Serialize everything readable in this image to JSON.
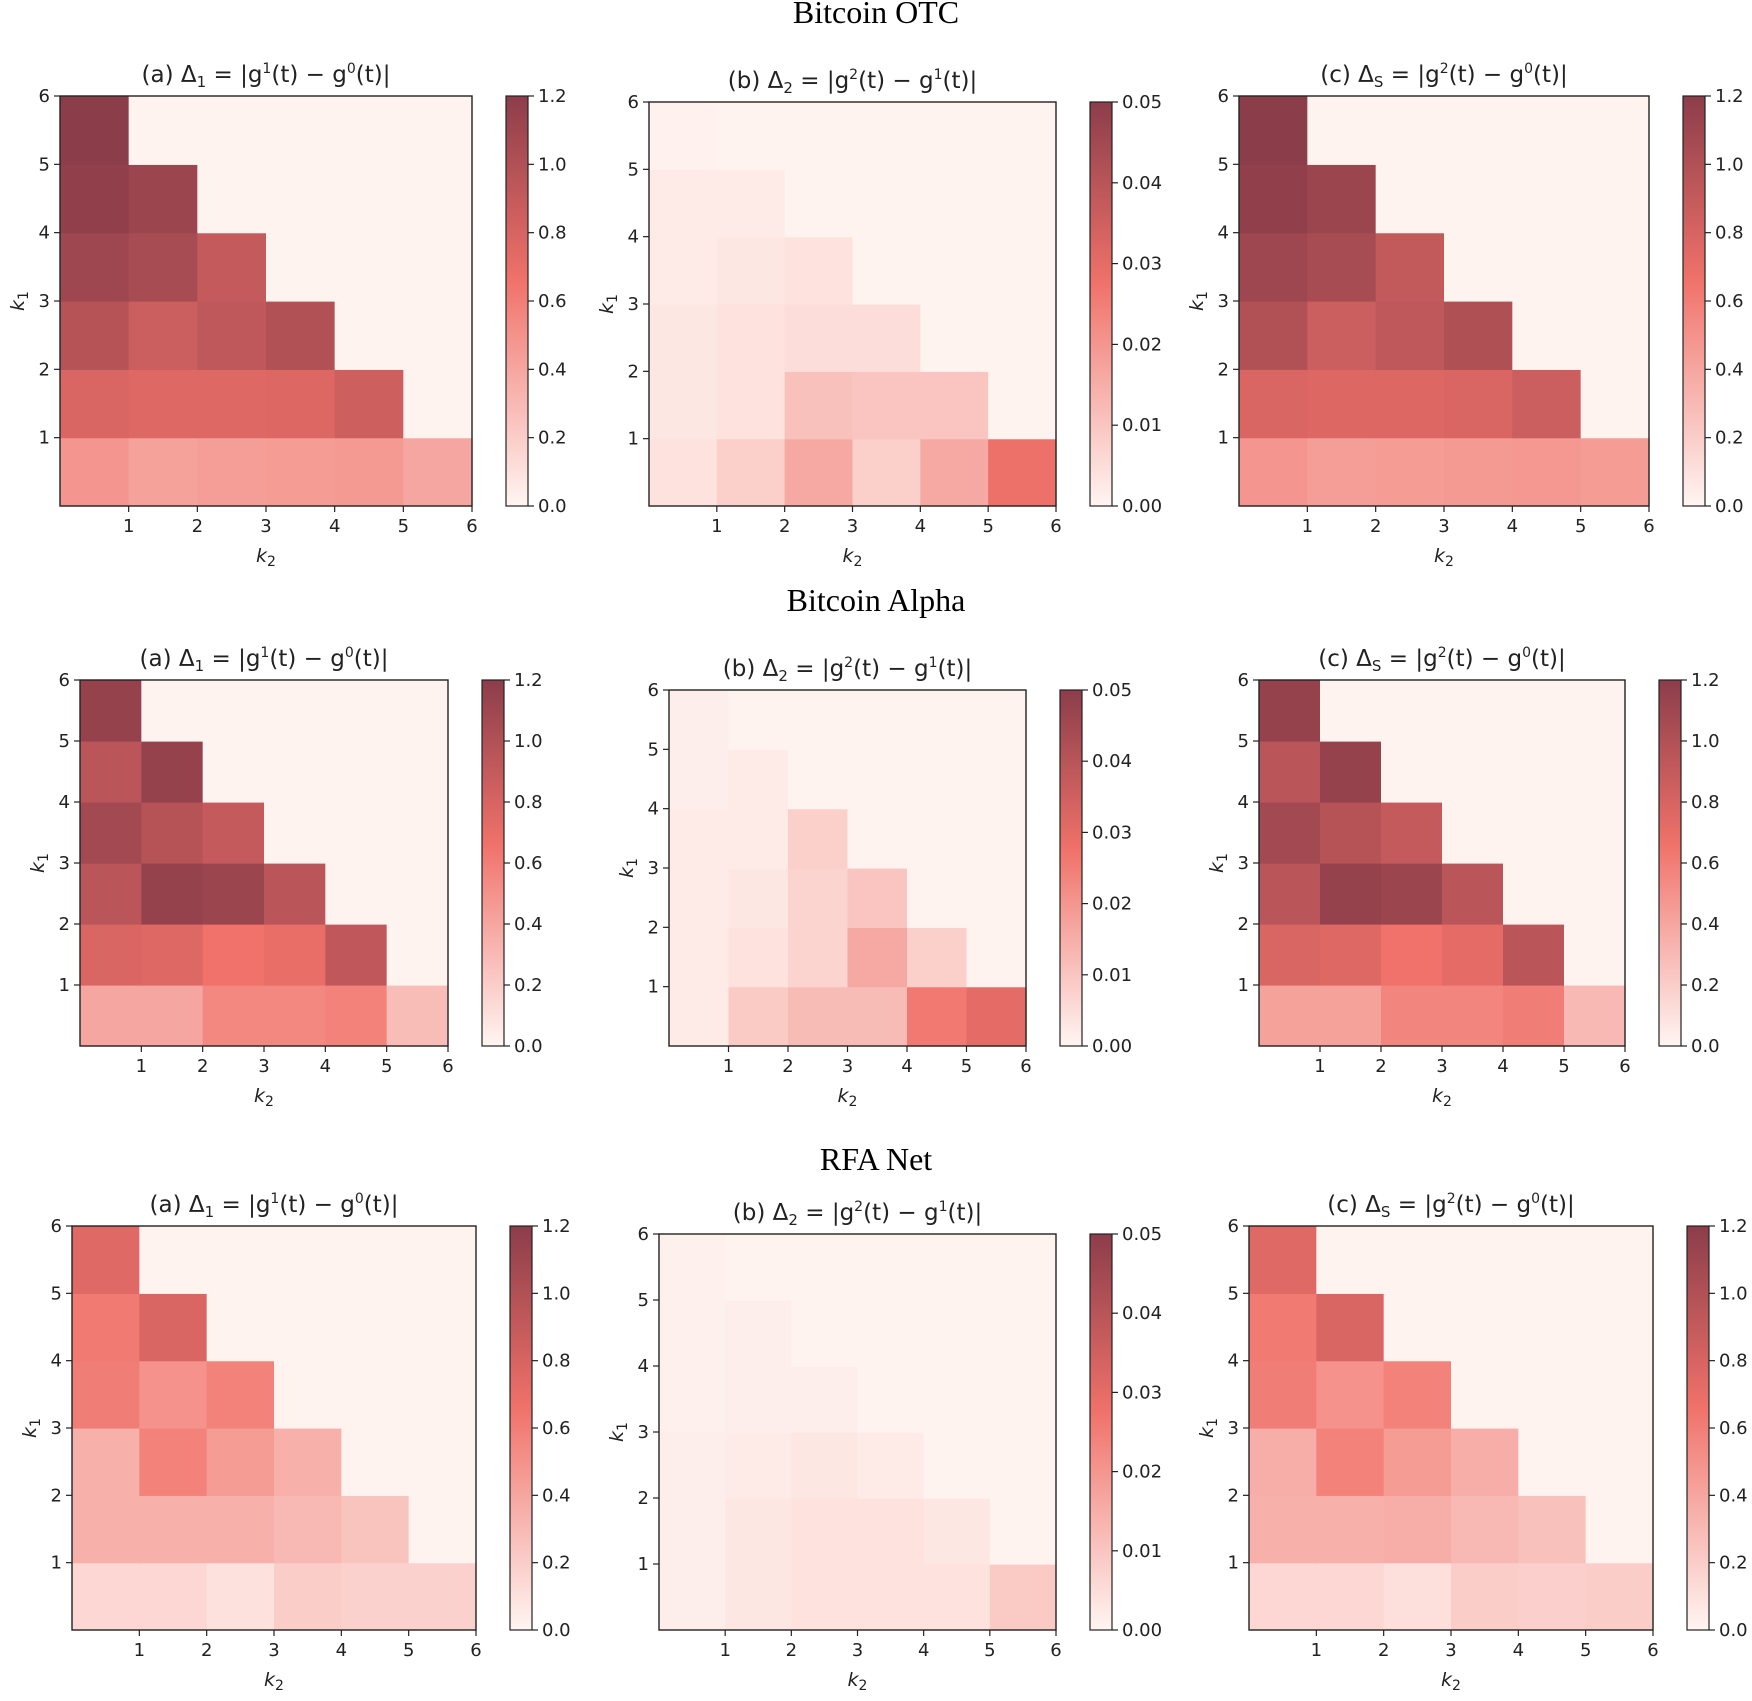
{
  "figure": {
    "groups": [
      {
        "title": "Bitcoin OTC"
      },
      {
        "title": "Bitcoin Alpha"
      },
      {
        "title": "RFA Net"
      }
    ]
  },
  "colors": {
    "low": "#fff5f2",
    "mid": "#f0726a",
    "high": "#8c3d4a",
    "axis": "#222222"
  },
  "chart_data": [
    {
      "type": "heatmap",
      "group": "Bitcoin OTC",
      "title": "(a) Δ1 = |g1(t) − g0(t)|",
      "title_parts": {
        "prefix": "(a) Δ",
        "sub1": "1",
        "mid1": " = |g",
        "sup1": "1",
        "mid2": "(t) − g",
        "sup2": "0",
        "end": "(t)|"
      },
      "xlabel": "k2",
      "ylabel": "k1",
      "xticks": [
        "1",
        "2",
        "3",
        "4",
        "5",
        "6"
      ],
      "yticks": [
        "1",
        "2",
        "3",
        "4",
        "5",
        "6"
      ],
      "xlim": [
        0,
        6
      ],
      "ylim": [
        0,
        6
      ],
      "colorbar": {
        "min": 0,
        "max": 1.2,
        "ticks": [
          "0.0",
          "0.2",
          "0.4",
          "0.6",
          "0.8",
          "1.0",
          "1.2"
        ]
      },
      "values": [
        [
          0.48,
          0.42,
          0.44,
          0.45,
          0.46,
          0.4
        ],
        [
          0.78,
          0.76,
          0.76,
          0.77,
          0.85,
          0.01
        ],
        [
          0.98,
          0.86,
          0.93,
          1.0,
          0.01,
          0.01
        ],
        [
          1.1,
          1.05,
          0.9,
          0.01,
          0.01,
          0.01
        ],
        [
          1.18,
          1.12,
          0.01,
          0.01,
          0.01,
          0.01
        ],
        [
          1.2,
          0.01,
          0.01,
          0.01,
          0.01,
          0.01
        ]
      ]
    },
    {
      "type": "heatmap",
      "group": "Bitcoin OTC",
      "title": "(b) Δ2 = |g2(t) − g1(t)|",
      "title_parts": {
        "prefix": "(b) Δ",
        "sub1": "2",
        "mid1": " = |g",
        "sup1": "2",
        "mid2": "(t) − g",
        "sup2": "1",
        "end": "(t)|"
      },
      "xlabel": "k2",
      "ylabel": "k1",
      "xticks": [
        "1",
        "2",
        "3",
        "4",
        "5",
        "6"
      ],
      "yticks": [
        "1",
        "2",
        "3",
        "4",
        "5",
        "6"
      ],
      "xlim": [
        0,
        6
      ],
      "ylim": [
        0,
        6
      ],
      "colorbar": {
        "min": 0,
        "max": 0.05,
        "ticks": [
          "0.00",
          "0.01",
          "0.02",
          "0.03",
          "0.04",
          "0.05"
        ]
      },
      "values": [
        [
          0.004,
          0.008,
          0.016,
          0.008,
          0.016,
          0.028
        ],
        [
          0.003,
          0.004,
          0.011,
          0.01,
          0.01,
          0.0004
        ],
        [
          0.003,
          0.004,
          0.005,
          0.005,
          0.0004,
          0.0004
        ],
        [
          0.002,
          0.003,
          0.004,
          0.0004,
          0.0004,
          0.0004
        ],
        [
          0.002,
          0.002,
          0.0004,
          0.0004,
          0.0004,
          0.0004
        ],
        [
          0.0008,
          0.0004,
          0.0004,
          0.0004,
          0.0004,
          0.0004
        ]
      ]
    },
    {
      "type": "heatmap",
      "group": "Bitcoin OTC",
      "title": "(c) ΔS = |g2(t) − g0(t)|",
      "title_parts": {
        "prefix": "(c) Δ",
        "sub1": "S",
        "mid1": " = |g",
        "sup1": "2",
        "mid2": "(t) − g",
        "sup2": "0",
        "end": "(t)|"
      },
      "xlabel": "k2",
      "ylabel": "k1",
      "xticks": [
        "1",
        "2",
        "3",
        "4",
        "5",
        "6"
      ],
      "yticks": [
        "1",
        "2",
        "3",
        "4",
        "5",
        "6"
      ],
      "xlim": [
        0,
        6
      ],
      "ylim": [
        0,
        6
      ],
      "colorbar": {
        "min": 0,
        "max": 1.2,
        "ticks": [
          "0.0",
          "0.2",
          "0.4",
          "0.6",
          "0.8",
          "1.0",
          "1.2"
        ]
      },
      "values": [
        [
          0.48,
          0.44,
          0.45,
          0.46,
          0.47,
          0.45
        ],
        [
          0.78,
          0.77,
          0.77,
          0.78,
          0.86,
          0.01
        ],
        [
          1.0,
          0.86,
          0.93,
          1.01,
          0.01,
          0.01
        ],
        [
          1.1,
          1.05,
          0.91,
          0.01,
          0.01,
          0.01
        ],
        [
          1.18,
          1.12,
          0.01,
          0.01,
          0.01,
          0.01
        ],
        [
          1.2,
          0.01,
          0.01,
          0.01,
          0.01,
          0.01
        ]
      ]
    },
    {
      "type": "heatmap",
      "group": "Bitcoin Alpha",
      "title": "(a) Δ1 = |g1(t) − g0(t)|",
      "title_parts": {
        "prefix": "(a) Δ",
        "sub1": "1",
        "mid1": " = |g",
        "sup1": "1",
        "mid2": "(t) − g",
        "sup2": "0",
        "end": "(t)|"
      },
      "xlabel": "k2",
      "ylabel": "k1",
      "xticks": [
        "1",
        "2",
        "3",
        "4",
        "5",
        "6"
      ],
      "yticks": [
        "1",
        "2",
        "3",
        "4",
        "5",
        "6"
      ],
      "xlim": [
        0,
        6
      ],
      "ylim": [
        0,
        6
      ],
      "colorbar": {
        "min": 0,
        "max": 1.2,
        "ticks": [
          "0.0",
          "0.2",
          "0.4",
          "0.6",
          "0.8",
          "1.0",
          "1.2"
        ]
      },
      "values": [
        [
          0.4,
          0.4,
          0.55,
          0.55,
          0.58,
          0.28
        ],
        [
          0.78,
          0.76,
          0.66,
          0.7,
          0.92,
          0.01
        ],
        [
          0.95,
          1.15,
          1.12,
          0.95,
          0.01,
          0.01
        ],
        [
          1.08,
          0.98,
          0.9,
          0.01,
          0.01,
          0.01
        ],
        [
          0.95,
          1.15,
          0.01,
          0.01,
          0.01,
          0.01
        ],
        [
          1.15,
          0.01,
          0.01,
          0.01,
          0.01,
          0.01
        ]
      ]
    },
    {
      "type": "heatmap",
      "group": "Bitcoin Alpha",
      "title": "(b) Δ2 = |g2(t) − g1(t)|",
      "title_parts": {
        "prefix": "(b) Δ",
        "sub1": "2",
        "mid1": " = |g",
        "sup1": "2",
        "mid2": "(t) − g",
        "sup2": "1",
        "end": "(t)|"
      },
      "xlabel": "k2",
      "ylabel": "k1",
      "xticks": [
        "1",
        "2",
        "3",
        "4",
        "5",
        "6"
      ],
      "yticks": [
        "1",
        "2",
        "3",
        "4",
        "5",
        "6"
      ],
      "xlim": [
        0,
        6
      ],
      "ylim": [
        0,
        6
      ],
      "colorbar": {
        "min": 0,
        "max": 0.05,
        "ticks": [
          "0.00",
          "0.01",
          "0.02",
          "0.03",
          "0.04",
          "0.05"
        ]
      },
      "values": [
        [
          0.002,
          0.009,
          0.012,
          0.012,
          0.026,
          0.03
        ],
        [
          0.002,
          0.004,
          0.007,
          0.016,
          0.008,
          0.0004
        ],
        [
          0.002,
          0.003,
          0.007,
          0.01,
          0.0004,
          0.0004
        ],
        [
          0.002,
          0.002,
          0.008,
          0.0004,
          0.0004,
          0.0004
        ],
        [
          0.0015,
          0.002,
          0.0004,
          0.0004,
          0.0004,
          0.0004
        ],
        [
          0.0015,
          0.0004,
          0.0004,
          0.0004,
          0.0004,
          0.0004
        ]
      ]
    },
    {
      "type": "heatmap",
      "group": "Bitcoin Alpha",
      "title": "(c) ΔS = |g2(t) − g0(t)|",
      "title_parts": {
        "prefix": "(c) Δ",
        "sub1": "S",
        "mid1": " = |g",
        "sup1": "2",
        "mid2": "(t) − g",
        "sup2": "0",
        "end": "(t)|"
      },
      "xlabel": "k2",
      "ylabel": "k1",
      "xticks": [
        "1",
        "2",
        "3",
        "4",
        "5",
        "6"
      ],
      "yticks": [
        "1",
        "2",
        "3",
        "4",
        "5",
        "6"
      ],
      "xlim": [
        0,
        6
      ],
      "ylim": [
        0,
        6
      ],
      "colorbar": {
        "min": 0,
        "max": 1.2,
        "ticks": [
          "0.0",
          "0.2",
          "0.4",
          "0.6",
          "0.8",
          "1.0",
          "1.2"
        ]
      },
      "values": [
        [
          0.42,
          0.42,
          0.56,
          0.56,
          0.6,
          0.3
        ],
        [
          0.78,
          0.76,
          0.66,
          0.72,
          0.95,
          0.01
        ],
        [
          0.95,
          1.15,
          1.12,
          0.95,
          0.01,
          0.01
        ],
        [
          1.08,
          0.98,
          0.9,
          0.01,
          0.01,
          0.01
        ],
        [
          0.95,
          1.15,
          0.01,
          0.01,
          0.01,
          0.01
        ],
        [
          1.15,
          0.01,
          0.01,
          0.01,
          0.01,
          0.01
        ]
      ]
    },
    {
      "type": "heatmap",
      "group": "RFA Net",
      "title": "(a) Δ1 = |g1(t) − g0(t)|",
      "title_parts": {
        "prefix": "(a) Δ",
        "sub1": "1",
        "mid1": " = |g",
        "sup1": "1",
        "mid2": "(t) − g",
        "sup2": "0",
        "end": "(t)|"
      },
      "xlabel": "k2",
      "ylabel": "k1",
      "xticks": [
        "1",
        "2",
        "3",
        "4",
        "5",
        "6"
      ],
      "yticks": [
        "1",
        "2",
        "3",
        "4",
        "5",
        "6"
      ],
      "xlim": [
        0,
        6
      ],
      "ylim": [
        0,
        6
      ],
      "colorbar": {
        "min": 0,
        "max": 1.2,
        "ticks": [
          "0.0",
          "0.2",
          "0.4",
          "0.6",
          "0.8",
          "1.0",
          "1.2"
        ]
      },
      "values": [
        [
          0.15,
          0.15,
          0.1,
          0.2,
          0.18,
          0.18
        ],
        [
          0.35,
          0.35,
          0.35,
          0.3,
          0.25,
          0.01
        ],
        [
          0.35,
          0.58,
          0.45,
          0.35,
          0.01,
          0.01
        ],
        [
          0.6,
          0.5,
          0.58,
          0.01,
          0.01,
          0.01
        ],
        [
          0.62,
          0.78,
          0.01,
          0.01,
          0.01,
          0.01
        ],
        [
          0.75,
          0.01,
          0.01,
          0.01,
          0.01,
          0.01
        ]
      ]
    },
    {
      "type": "heatmap",
      "group": "RFA Net",
      "title": "(b) Δ2 = |g2(t) − g1(t)|",
      "title_parts": {
        "prefix": "(b) Δ",
        "sub1": "2",
        "mid1": " = |g",
        "sup1": "2",
        "mid2": "(t) − g",
        "sup2": "1",
        "end": "(t)|"
      },
      "xlabel": "k2",
      "ylabel": "k1",
      "xticks": [
        "1",
        "2",
        "3",
        "4",
        "5",
        "6"
      ],
      "yticks": [
        "1",
        "2",
        "3",
        "4",
        "5",
        "6"
      ],
      "xlim": [
        0,
        6
      ],
      "ylim": [
        0,
        6
      ],
      "colorbar": {
        "min": 0,
        "max": 0.05,
        "ticks": [
          "0.00",
          "0.01",
          "0.02",
          "0.03",
          "0.04",
          "0.05"
        ]
      },
      "values": [
        [
          0.0015,
          0.003,
          0.004,
          0.004,
          0.004,
          0.009
        ],
        [
          0.0015,
          0.003,
          0.004,
          0.004,
          0.003,
          0.0004
        ],
        [
          0.0015,
          0.002,
          0.003,
          0.002,
          0.0004,
          0.0004
        ],
        [
          0.001,
          0.0015,
          0.0015,
          0.0004,
          0.0004,
          0.0004
        ],
        [
          0.001,
          0.0015,
          0.0004,
          0.0004,
          0.0004,
          0.0004
        ],
        [
          0.001,
          0.0004,
          0.0004,
          0.0004,
          0.0004,
          0.0004
        ]
      ]
    },
    {
      "type": "heatmap",
      "group": "RFA Net",
      "title": "(c) ΔS = |g2(t) − g0(t)|",
      "title_parts": {
        "prefix": "(c) Δ",
        "sub1": "S",
        "mid1": " = |g",
        "sup1": "2",
        "mid2": "(t) − g",
        "sup2": "0",
        "end": "(t)|"
      },
      "xlabel": "k2",
      "ylabel": "k1",
      "xticks": [
        "1",
        "2",
        "3",
        "4",
        "5",
        "6"
      ],
      "yticks": [
        "1",
        "2",
        "3",
        "4",
        "5",
        "6"
      ],
      "xlim": [
        0,
        6
      ],
      "ylim": [
        0,
        6
      ],
      "colorbar": {
        "min": 0,
        "max": 1.2,
        "ticks": [
          "0.0",
          "0.2",
          "0.4",
          "0.6",
          "0.8",
          "1.0",
          "1.2"
        ]
      },
      "values": [
        [
          0.15,
          0.15,
          0.11,
          0.2,
          0.19,
          0.2
        ],
        [
          0.35,
          0.35,
          0.36,
          0.3,
          0.26,
          0.01
        ],
        [
          0.36,
          0.58,
          0.45,
          0.36,
          0.01,
          0.01
        ],
        [
          0.6,
          0.5,
          0.58,
          0.01,
          0.01,
          0.01
        ],
        [
          0.62,
          0.78,
          0.01,
          0.01,
          0.01,
          0.01
        ],
        [
          0.75,
          0.01,
          0.01,
          0.01,
          0.01,
          0.01
        ]
      ]
    }
  ]
}
